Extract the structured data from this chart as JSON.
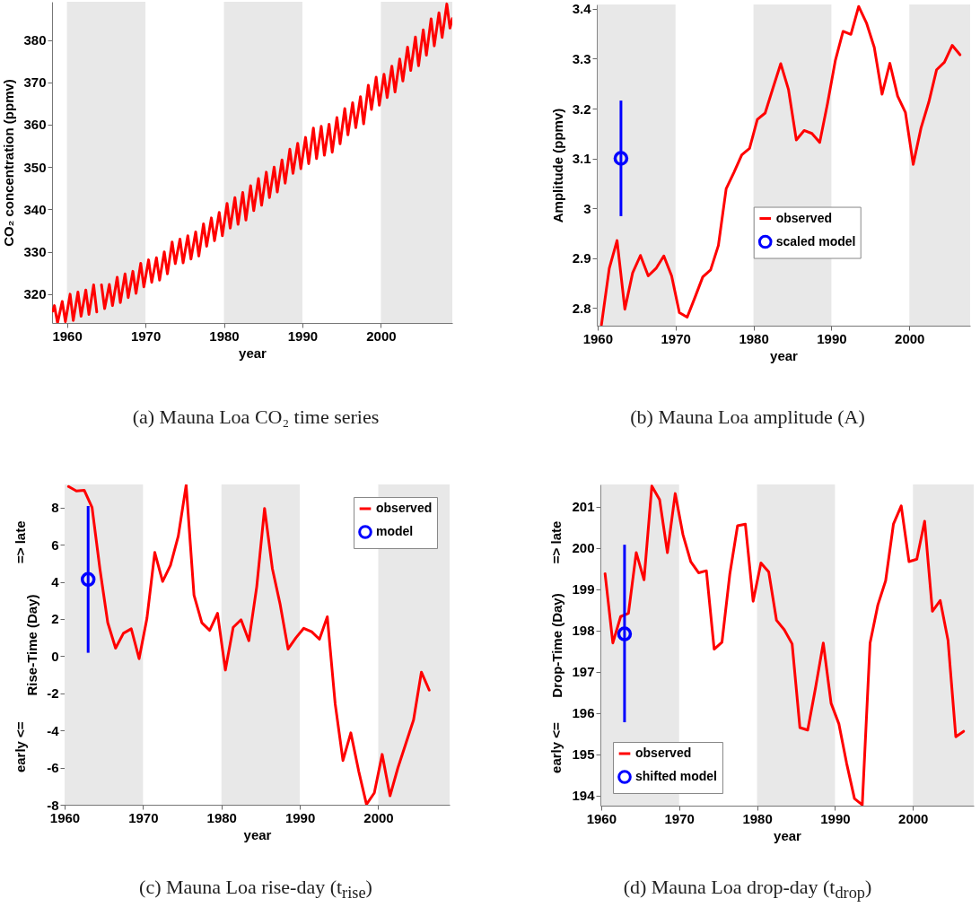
{
  "chart_data": [
    {
      "type": "line",
      "title": "(a) Mauna Loa CO₂ time series",
      "xlabel": "year",
      "ylabel": "CO₂ concentration (ppmv)",
      "xlim": [
        1958.1,
        2009.1
      ],
      "ylim": [
        313.2,
        389
      ],
      "xticks": [
        1960,
        1970,
        1980,
        1990,
        2000
      ],
      "yticks": [
        320,
        330,
        340,
        350,
        360,
        370,
        380
      ],
      "bands": [
        {
          "axis": "x",
          "from": 1960,
          "to": 1970,
          "color": "#e8e8e8"
        },
        {
          "axis": "x",
          "from": 1980,
          "to": 1990,
          "color": "#e8e8e8"
        },
        {
          "axis": "x",
          "from": 2000,
          "to": 2009.1,
          "color": "#e8e8e8"
        }
      ],
      "series": [
        {
          "color": "#ff0000",
          "x": [
            1958.2,
            1958.4,
            1958.8,
            1959.4,
            1959.8,
            1960.4,
            1960.8,
            1961.4,
            1961.8,
            1962.4,
            1962.8,
            1963.4,
            1963.8,
            1964.1,
            1964.4,
            1964.8,
            1965.4,
            1965.8,
            1966.4,
            1966.8,
            1967.4,
            1967.8,
            1968.4,
            1968.8,
            1969.4,
            1969.8,
            1970.4,
            1970.8,
            1971.4,
            1971.8,
            1972.4,
            1972.8,
            1973.4,
            1973.8,
            1974.4,
            1974.8,
            1975.4,
            1975.8,
            1976.4,
            1976.8,
            1977.4,
            1977.8,
            1978.4,
            1978.8,
            1979.4,
            1979.8,
            1980.4,
            1980.8,
            1981.4,
            1981.8,
            1982.4,
            1982.8,
            1983.4,
            1983.8,
            1984.4,
            1984.8,
            1985.4,
            1985.8,
            1986.4,
            1986.8,
            1987.4,
            1987.8,
            1988.4,
            1988.8,
            1989.4,
            1989.8,
            1990.4,
            1990.8,
            1991.4,
            1991.8,
            1992.4,
            1992.8,
            1993.4,
            1993.8,
            1994.4,
            1994.8,
            1995.4,
            1995.8,
            1996.4,
            1996.8,
            1997.4,
            1997.8,
            1998.4,
            1998.8,
            1999.4,
            1999.8,
            2000.4,
            2000.8,
            2001.4,
            2001.8,
            2002.4,
            2002.8,
            2003.4,
            2003.8,
            2004.4,
            2004.8,
            2005.4,
            2005.8,
            2006.4,
            2006.8,
            2007.4,
            2007.8,
            2008.4,
            2008.8,
            2009.1
          ],
          "values": [
            316,
            317.3,
            313.2,
            318.3,
            313.5,
            320,
            313.8,
            320.5,
            314.8,
            321,
            315.2,
            322.2,
            315.8,
            null,
            322.2,
            316.6,
            322.3,
            317.3,
            324,
            318,
            324.8,
            319.2,
            325.4,
            320.2,
            327.3,
            321.7,
            328.1,
            322.8,
            328.6,
            323.3,
            330,
            324.8,
            332.3,
            327.2,
            333,
            327.4,
            333.8,
            328.3,
            334.7,
            329,
            336.6,
            331.3,
            338,
            332.6,
            339.3,
            333.8,
            341.4,
            335.6,
            342.8,
            336.5,
            344,
            337.5,
            345.6,
            339.7,
            347.3,
            341,
            348.8,
            342.8,
            350,
            344.1,
            351.7,
            346.2,
            354.2,
            348.5,
            355.6,
            349.6,
            357,
            350.8,
            359.2,
            352,
            359.6,
            352.8,
            360.1,
            353.5,
            361.7,
            355.5,
            363.8,
            357.6,
            365.2,
            359.3,
            366.6,
            360.2,
            369.3,
            363.6,
            371.2,
            364.6,
            371.9,
            366.4,
            373.8,
            367.7,
            375.5,
            370.3,
            378.3,
            372.8,
            380.7,
            373.9,
            382.4,
            376.4,
            385,
            378.6,
            386.4,
            380.6,
            388.5,
            382.8,
            385
          ]
        }
      ]
    },
    {
      "type": "line",
      "title": "(b) Mauna Loa amplitude (A)",
      "xlabel": "year",
      "ylabel": "Amplitude (ppmv)",
      "xlim": [
        1959.9,
        2007.8
      ],
      "ylim": [
        2.764,
        3.409
      ],
      "xticks": [
        1960,
        1970,
        1980,
        1990,
        2000
      ],
      "yticks": [
        2.8,
        2.9,
        3,
        3.1,
        3.2,
        3.3,
        3.4
      ],
      "legend": "center",
      "bands": [
        {
          "axis": "x",
          "from": 1960,
          "to": 1970,
          "color": "#e8e8e8"
        },
        {
          "axis": "x",
          "from": 1980,
          "to": 1990,
          "color": "#e8e8e8"
        },
        {
          "axis": "x",
          "from": 2000,
          "to": 2007.8,
          "color": "#e8e8e8"
        }
      ],
      "series": [
        {
          "name": "observed",
          "color": "#ff0000",
          "x": [
            1960.5,
            1961.5,
            1962.5,
            1963.5,
            1964.5,
            1965.5,
            1966.5,
            1967.5,
            1968.5,
            1969.5,
            1970.5,
            1971.5,
            1972.5,
            1973.5,
            1974.5,
            1975.5,
            1976.5,
            1977.5,
            1978.5,
            1979.5,
            1980.5,
            1981.5,
            1982.5,
            1983.5,
            1984.5,
            1985.5,
            1986.5,
            1987.5,
            1988.5,
            1989.5,
            1990.5,
            1991.5,
            1992.5,
            1993.5,
            1994.5,
            1995.5,
            1996.5,
            1997.5,
            1998.5,
            1999.5,
            2000.5,
            2001.5,
            2002.5,
            2003.5,
            2004.5,
            2005.5,
            2006.5
          ],
          "values": [
            2.766,
            2.879,
            2.935,
            2.797,
            2.87,
            2.905,
            2.864,
            2.879,
            2.904,
            2.864,
            2.79,
            2.781,
            2.821,
            2.862,
            2.876,
            2.925,
            3.039,
            3.072,
            3.107,
            3.12,
            3.178,
            3.191,
            3.241,
            3.29,
            3.238,
            3.137,
            3.156,
            3.15,
            3.132,
            3.21,
            3.296,
            3.355,
            3.349,
            3.405,
            3.372,
            3.323,
            3.229,
            3.291,
            3.225,
            3.192,
            3.088,
            3.161,
            3.213,
            3.278,
            3.293,
            3.327,
            3.308
          ]
        },
        {
          "name": "scaled model",
          "type": "scatter",
          "color": "#0000ff",
          "marker": "circle",
          "x": [
            1963
          ],
          "values": [
            3.1
          ],
          "errors": [
            [
              2.984,
              3.216
            ]
          ]
        }
      ]
    },
    {
      "type": "line",
      "title": "(c) Mauna Loa rise-day (t$_{rise}$)",
      "xlabel": "year",
      "ylabel": "Rise-Time (Day)",
      "annotations": [
        "=> late",
        "early <="
      ],
      "xlim": [
        1960,
        2009.1
      ],
      "ylim": [
        -8,
        9.24
      ],
      "xticks": [
        1960,
        1970,
        1980,
        1990,
        2000
      ],
      "yticks": [
        -8,
        -6,
        -4,
        -2,
        0,
        2,
        4,
        6,
        8
      ],
      "legend": "top right",
      "bands": [
        {
          "axis": "x",
          "from": 1960,
          "to": 1970,
          "color": "#e8e8e8"
        },
        {
          "axis": "x",
          "from": 1980,
          "to": 1990,
          "color": "#e8e8e8"
        },
        {
          "axis": "x",
          "from": 2000,
          "to": 2009.1,
          "color": "#e8e8e8"
        }
      ],
      "series": [
        {
          "name": "observed",
          "color": "#ff0000",
          "x": [
            1960.5,
            1961.5,
            1962.5,
            1963.5,
            1964.5,
            1965.5,
            1966.5,
            1967.5,
            1968.5,
            1969.5,
            1970.5,
            1971.5,
            1972.5,
            1973.5,
            1974.5,
            1975.5,
            1976.5,
            1977.5,
            1978.5,
            1979.5,
            1980.5,
            1981.5,
            1982.5,
            1983.5,
            1984.5,
            1985.5,
            1986.5,
            1987.5,
            1988.5,
            1989.5,
            1990.5,
            1991.5,
            1992.5,
            1993.5,
            1994.5,
            1995.5,
            1996.5,
            1997.5,
            1998.5,
            1999.5,
            2000.5,
            2001.5,
            2002.5,
            2003.5,
            2004.5,
            2005.5,
            2006.5
          ],
          "values": [
            9.13,
            8.89,
            8.93,
            8,
            4.7,
            1.8,
            0.43,
            1.23,
            1.47,
            -0.14,
            2.04,
            5.58,
            4.02,
            4.89,
            6.47,
            9.2,
            3.28,
            1.8,
            1.39,
            2.31,
            -0.75,
            1.55,
            1.96,
            0.83,
            3.73,
            7.95,
            4.7,
            2.76,
            0.38,
            0.99,
            1.5,
            1.31,
            0.91,
            2.12,
            -2.55,
            -5.62,
            -4.13,
            -6.18,
            -7.98,
            -7.36,
            -5.29,
            -7.52,
            -6.02,
            -4.73,
            -3.44,
            -0.86,
            -1.83
          ]
        },
        {
          "name": "model",
          "type": "scatter",
          "color": "#0000ff",
          "marker": "circle",
          "x": [
            1963
          ],
          "values": [
            4.13
          ],
          "errors": [
            [
              0.18,
              8.08
            ]
          ]
        }
      ]
    },
    {
      "type": "line",
      "title": "(d) Mauna Loa drop-day (t$_{drop}$)",
      "xlabel": "year",
      "ylabel": "Drop-Time (Day)",
      "annotations": [
        "=> late",
        "early <="
      ],
      "xlim": [
        1959.9,
        2007.8
      ],
      "ylim": [
        193.76,
        201.54
      ],
      "xticks": [
        1960,
        1970,
        1980,
        1990,
        2000
      ],
      "yticks": [
        194,
        195,
        196,
        197,
        198,
        199,
        200,
        201
      ],
      "legend": "bottom left",
      "bands": [
        {
          "axis": "x",
          "from": 1960,
          "to": 1970,
          "color": "#e8e8e8"
        },
        {
          "axis": "x",
          "from": 1980,
          "to": 1990,
          "color": "#e8e8e8"
        },
        {
          "axis": "x",
          "from": 2000,
          "to": 2007.8,
          "color": "#e8e8e8"
        }
      ],
      "series": [
        {
          "name": "observed",
          "color": "#ff0000",
          "x": [
            1960.5,
            1961.5,
            1962.5,
            1963.5,
            1964.5,
            1965.5,
            1966.5,
            1967.5,
            1968.5,
            1969.5,
            1970.5,
            1971.5,
            1972.5,
            1973.5,
            1974.5,
            1975.5,
            1976.5,
            1977.5,
            1978.5,
            1979.5,
            1980.5,
            1981.5,
            1982.5,
            1983.5,
            1984.5,
            1985.5,
            1986.5,
            1987.5,
            1988.5,
            1989.5,
            1990.5,
            1991.5,
            1992.5,
            1993.5,
            1994.5,
            1995.5,
            1996.5,
            1997.5,
            1998.5,
            1999.5,
            2000.5,
            2001.5,
            2002.5,
            2003.5,
            2004.5,
            2005.5,
            2006.5
          ],
          "values": [
            199.38,
            197.7,
            198.34,
            198.42,
            199.89,
            199.23,
            201.5,
            201.17,
            199.89,
            201.32,
            200.32,
            199.67,
            199.4,
            199.45,
            197.55,
            197.72,
            199.36,
            200.54,
            200.58,
            198.71,
            199.64,
            199.42,
            198.25,
            198.02,
            197.68,
            195.65,
            195.59,
            196.61,
            197.7,
            196.24,
            195.74,
            194.78,
            193.93,
            193.78,
            197.7,
            198.62,
            199.21,
            200.58,
            201.02,
            199.67,
            199.73,
            200.65,
            198.47,
            198.73,
            197.77,
            195.43,
            195.56
          ]
        },
        {
          "name": "shifted model",
          "type": "scatter",
          "color": "#0000ff",
          "marker": "circle",
          "x": [
            1963
          ],
          "values": [
            197.92
          ],
          "errors": [
            [
              195.78,
              200.08
            ]
          ]
        }
      ]
    }
  ]
}
